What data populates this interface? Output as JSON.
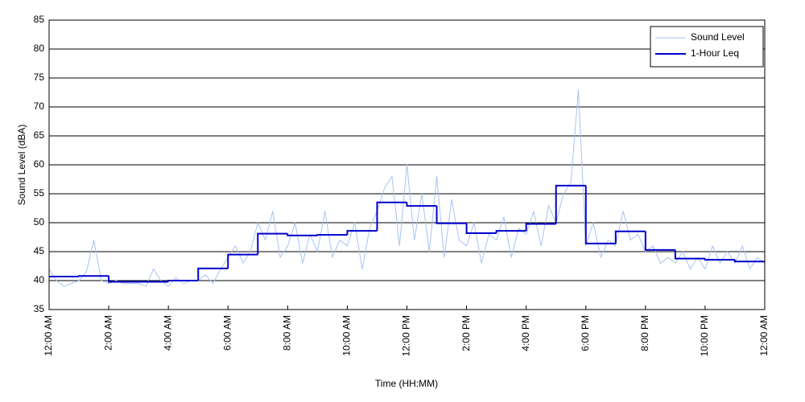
{
  "chart_data": {
    "type": "line",
    "xlabel": "Time (HH:MM)",
    "ylabel": "Sound Level (dBA)",
    "xlim": [
      0,
      24
    ],
    "ylim": [
      35,
      85
    ],
    "xticks": [
      {
        "value": 0,
        "label": "12:00 AM"
      },
      {
        "value": 2,
        "label": "2:00 AM"
      },
      {
        "value": 4,
        "label": "4:00 AM"
      },
      {
        "value": 6,
        "label": "6:00 AM"
      },
      {
        "value": 8,
        "label": "8:00 AM"
      },
      {
        "value": 10,
        "label": "10:00 AM"
      },
      {
        "value": 12,
        "label": "12:00 PM"
      },
      {
        "value": 14,
        "label": "2:00 PM"
      },
      {
        "value": 16,
        "label": "4:00 PM"
      },
      {
        "value": 18,
        "label": "6:00 PM"
      },
      {
        "value": 20,
        "label": "8:00 PM"
      },
      {
        "value": 22,
        "label": "10:00 PM"
      },
      {
        "value": 24,
        "label": "12:00 AM"
      }
    ],
    "yticks": [
      35,
      40,
      45,
      50,
      55,
      60,
      65,
      70,
      75,
      80,
      85
    ],
    "grid": true,
    "legend": "upper right",
    "series": [
      {
        "name": "Sound Level",
        "color": "#a9c3f2",
        "width": 1,
        "x": [
          0,
          0.25,
          0.5,
          0.75,
          1,
          1.25,
          1.5,
          1.75,
          2,
          2.25,
          2.5,
          2.75,
          3,
          3.25,
          3.5,
          3.75,
          4,
          4.25,
          4.5,
          4.75,
          5,
          5.25,
          5.5,
          5.75,
          6,
          6.25,
          6.5,
          6.75,
          7,
          7.25,
          7.5,
          7.75,
          8,
          8.25,
          8.5,
          8.75,
          9,
          9.25,
          9.5,
          9.75,
          10,
          10.25,
          10.5,
          10.75,
          11,
          11.25,
          11.5,
          11.75,
          12,
          12.25,
          12.5,
          12.75,
          13,
          13.25,
          13.5,
          13.75,
          14,
          14.25,
          14.5,
          14.75,
          15,
          15.25,
          15.5,
          15.75,
          16,
          16.25,
          16.5,
          16.75,
          17,
          17.25,
          17.5,
          17.75,
          18,
          18.25,
          18.5,
          18.75,
          19,
          19.25,
          19.5,
          19.75,
          20,
          20.25,
          20.5,
          20.75,
          21,
          21.25,
          21.5,
          21.75,
          22,
          22.25,
          22.5,
          22.75,
          23,
          23.25,
          23.5,
          23.75,
          24
        ],
        "values": [
          42,
          40,
          39,
          39.5,
          40,
          41.5,
          47,
          40,
          39.5,
          40,
          39.5,
          39.5,
          39.5,
          39,
          42,
          40,
          39,
          40.5,
          39.5,
          40,
          40,
          41,
          39.5,
          42,
          44,
          46,
          43,
          45,
          50,
          47,
          52,
          44,
          46,
          50,
          43,
          48,
          45,
          52,
          44,
          47,
          46,
          50,
          42,
          49,
          52,
          56,
          58,
          46,
          60,
          47,
          55,
          45,
          58,
          44,
          54,
          47,
          46,
          50,
          43,
          48,
          47,
          51,
          44,
          49,
          48,
          52,
          46,
          53,
          50,
          55,
          57,
          73,
          46,
          50,
          44,
          47,
          46,
          52,
          47,
          48,
          45,
          46,
          43,
          44,
          43,
          45,
          42,
          44,
          42,
          46,
          43,
          45,
          43,
          46,
          42,
          44,
          43
        ]
      },
      {
        "name": "1-Hour Leq",
        "color": "#0000cc",
        "width": 2,
        "step": "post",
        "x": [
          0,
          1,
          2,
          3,
          4,
          5,
          6,
          7,
          8,
          9,
          10,
          11,
          12,
          13,
          14,
          15,
          16,
          17,
          18,
          19,
          20,
          21,
          22,
          23
        ],
        "values": [
          40.7,
          40.8,
          39.8,
          39.8,
          40.0,
          42.1,
          44.5,
          48.1,
          47.8,
          47.9,
          48.6,
          53.5,
          52.9,
          49.9,
          48.2,
          48.6,
          49.8,
          56.4,
          46.4,
          48.5,
          45.3,
          43.8,
          43.6,
          43.3
        ]
      }
    ]
  }
}
